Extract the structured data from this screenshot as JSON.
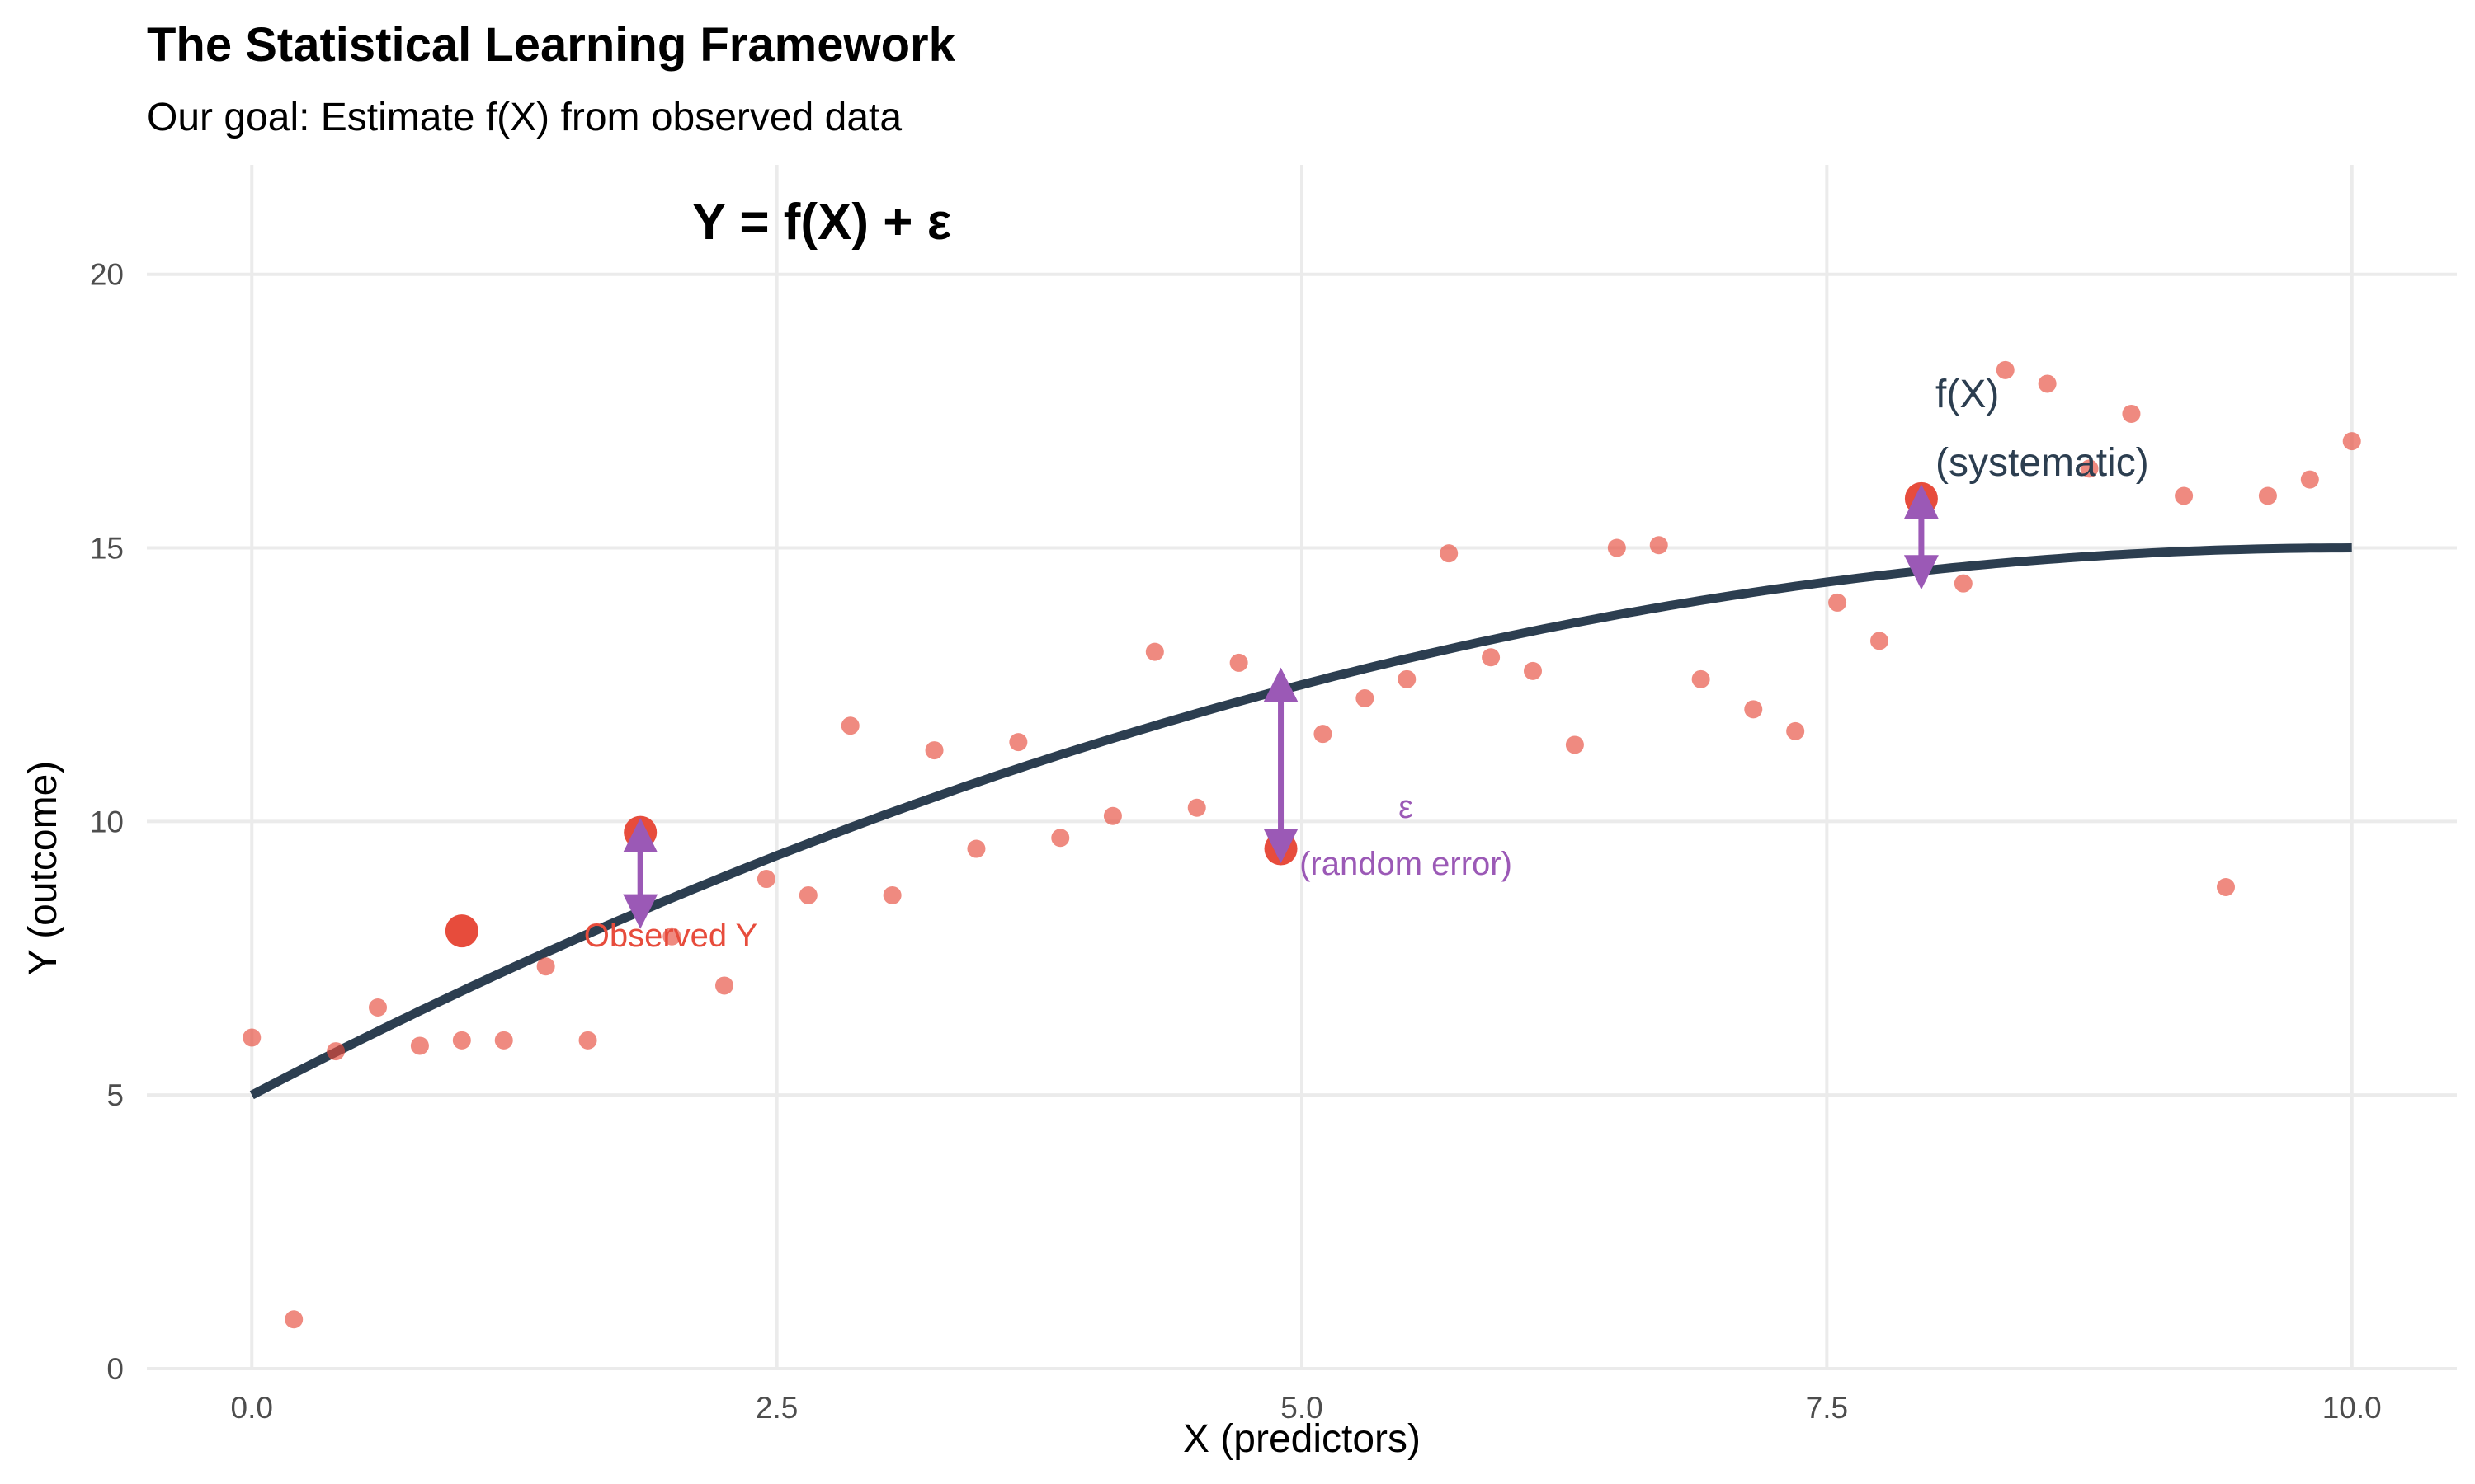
{
  "chart_data": {
    "type": "scatter",
    "title": "The Statistical Learning Framework",
    "subtitle": "Our goal: Estimate f(X) from observed data",
    "equation": "Y = f(X) + ε",
    "xlabel": "X (predictors)",
    "ylabel": "Y (outcome)",
    "xlim": [
      -0.5,
      10.5
    ],
    "ylim": [
      0,
      22
    ],
    "x_ticks": [
      0,
      2.5,
      5,
      7.5,
      10
    ],
    "x_tick_labels": [
      "0.0",
      "2.5",
      "5.0",
      "7.5",
      "10.0"
    ],
    "y_ticks": [
      0,
      5,
      10,
      15,
      20
    ],
    "y_tick_labels": [
      "0",
      "5",
      "10",
      "15",
      "20"
    ],
    "grid": true,
    "colors": {
      "points": "#e74c3c",
      "curve": "#2c3e50",
      "error_arrows": "#9b59b6",
      "grid": "#ebebeb"
    },
    "series": [
      {
        "name": "observations",
        "x": [
          0.0,
          0.2,
          0.4,
          0.6,
          0.8,
          1.0,
          1.2,
          1.4,
          1.6,
          2.0,
          2.25,
          2.45,
          2.65,
          2.85,
          3.05,
          3.25,
          3.45,
          3.65,
          3.85,
          4.1,
          4.3,
          4.5,
          4.7,
          5.1,
          5.3,
          5.5,
          5.7,
          5.9,
          6.1,
          6.3,
          6.5,
          6.7,
          6.9,
          7.15,
          7.35,
          7.55,
          7.75,
          8.15,
          8.35,
          8.55,
          8.75,
          8.95,
          9.2,
          9.4,
          9.6,
          9.8,
          10.0
        ],
        "y": [
          6.05,
          0.9,
          5.8,
          6.6,
          5.9,
          6.0,
          6.0,
          7.35,
          6.0,
          7.9,
          7.0,
          8.95,
          8.65,
          11.75,
          8.65,
          11.3,
          9.5,
          11.45,
          9.7,
          10.1,
          13.1,
          10.25,
          12.9,
          11.6,
          12.25,
          12.6,
          14.9,
          13.0,
          12.75,
          11.4,
          15.0,
          15.05,
          12.6,
          12.05,
          11.65,
          14.0,
          13.3,
          14.35,
          18.25,
          18.0,
          16.45,
          17.45,
          15.95,
          8.8,
          15.95,
          16.25,
          16.95
        ]
      },
      {
        "name": "highlighted",
        "x": [
          1.0,
          1.85,
          4.9,
          7.95
        ],
        "y": [
          8.0,
          9.8,
          9.5,
          15.9
        ]
      },
      {
        "name": "f(X)",
        "x": [
          0.0,
          10.0
        ],
        "formula": "y = 5 + 2x - 0.1x^2"
      }
    ],
    "error_arrows": [
      {
        "x": 1.85,
        "y_from": 9.8,
        "y_to": 8.3
      },
      {
        "x": 4.9,
        "y_from": 9.5,
        "y_to": 12.55
      },
      {
        "x": 7.95,
        "y_from": 15.9,
        "y_to": 14.5
      }
    ],
    "annotations": {
      "fx_line1": "f(X)",
      "fx_line2": "(systematic)",
      "observed": "Observed Y",
      "eps_line1": "ε",
      "eps_line2": "(random error)"
    }
  }
}
